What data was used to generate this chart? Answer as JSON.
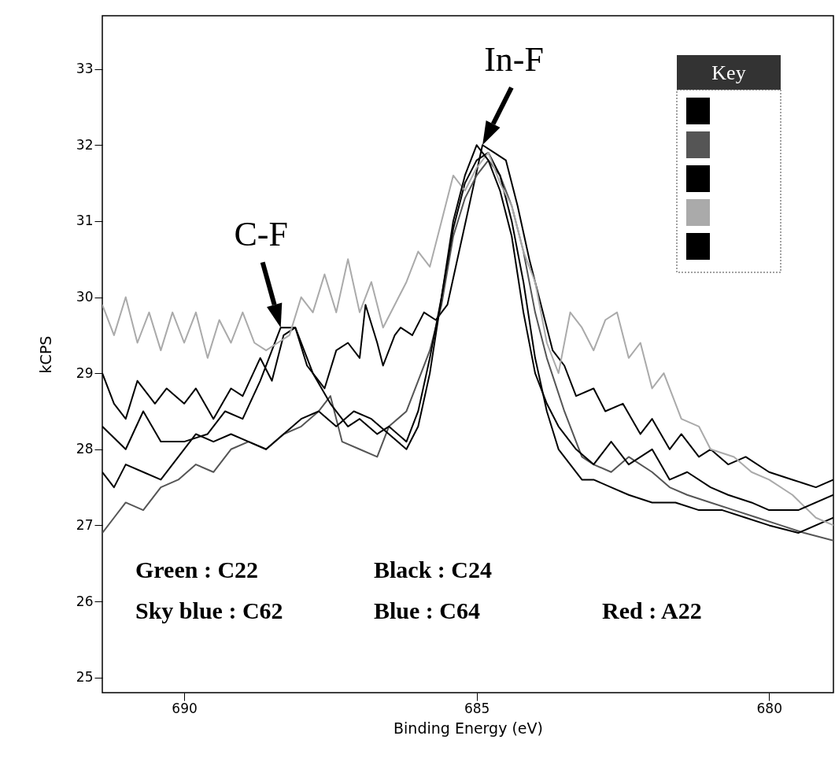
{
  "chart_data": {
    "type": "line",
    "xlabel": "Binding Energy (eV)",
    "ylabel": "kCPS",
    "legend_title": "Key",
    "xlim": [
      691.4,
      678.9
    ],
    "xticks": [
      690,
      685,
      680
    ],
    "ylim": [
      24.8,
      33.7
    ],
    "yticks": [
      25,
      26,
      27,
      28,
      29,
      30,
      31,
      32,
      33
    ],
    "grid": false,
    "annotations": [
      {
        "text": "C-F",
        "x": 688.35,
        "y": 29.6
      },
      {
        "text": "In-F",
        "x": 684.9,
        "y": 32.0
      },
      "Green : C22",
      "Black : C24",
      "Sky blue : C62",
      "Blue : C64",
      "Red : A22"
    ],
    "series": [
      {
        "color": "#000000",
        "x": [
          691.4,
          691.2,
          691.0,
          690.8,
          690.5,
          690.3,
          690.0,
          689.8,
          689.5,
          689.2,
          689.0,
          688.7,
          688.5,
          688.3,
          688.1,
          687.9,
          687.6,
          687.4,
          687.2,
          687.0,
          686.9,
          686.7,
          686.6,
          686.4,
          686.3,
          686.1,
          685.9,
          685.7,
          685.5,
          685.3,
          685.1,
          684.9,
          684.7,
          684.5,
          684.3,
          684.1,
          683.9,
          683.7,
          683.5,
          683.3,
          683.0,
          682.8,
          682.5,
          682.2,
          682.0,
          681.7,
          681.5,
          681.2,
          681.0,
          680.7,
          680.4,
          680.0,
          679.6,
          679.2,
          678.9
        ],
        "values": [
          29.0,
          28.6,
          28.4,
          28.9,
          28.6,
          28.8,
          28.6,
          28.8,
          28.4,
          28.8,
          28.7,
          29.2,
          28.9,
          29.5,
          29.6,
          29.1,
          28.8,
          29.3,
          29.4,
          29.2,
          29.9,
          29.4,
          29.1,
          29.5,
          29.6,
          29.5,
          29.8,
          29.7,
          29.9,
          30.6,
          31.3,
          32.0,
          31.9,
          31.8,
          31.2,
          30.5,
          29.9,
          29.3,
          29.1,
          28.7,
          28.8,
          28.5,
          28.6,
          28.2,
          28.4,
          28.0,
          28.2,
          27.9,
          28.0,
          27.8,
          27.9,
          27.7,
          27.6,
          27.5,
          27.6
        ]
      },
      {
        "color": "#555555",
        "x": [
          691.4,
          691.2,
          691.0,
          690.7,
          690.4,
          690.1,
          689.8,
          689.5,
          689.2,
          688.9,
          688.6,
          688.3,
          688.0,
          687.7,
          687.5,
          687.3,
          687.0,
          686.7,
          686.5,
          686.2,
          686.0,
          685.8,
          685.6,
          685.4,
          685.2,
          685.0,
          684.8,
          684.6,
          684.4,
          684.2,
          684.0,
          683.8,
          683.5,
          683.2,
          683.0,
          682.7,
          682.4,
          682.0,
          681.7,
          681.4,
          681.0,
          680.6,
          680.2,
          679.8,
          679.4,
          678.9
        ],
        "values": [
          26.9,
          27.1,
          27.3,
          27.2,
          27.5,
          27.6,
          27.8,
          27.7,
          28.0,
          28.1,
          28.0,
          28.2,
          28.3,
          28.5,
          28.7,
          28.1,
          28.0,
          27.9,
          28.3,
          28.5,
          28.9,
          29.3,
          29.9,
          30.8,
          31.3,
          31.6,
          31.8,
          31.6,
          31.2,
          30.6,
          29.8,
          29.2,
          28.5,
          27.9,
          27.8,
          27.7,
          27.9,
          27.7,
          27.5,
          27.4,
          27.3,
          27.2,
          27.1,
          27.0,
          26.9,
          26.8
        ]
      },
      {
        "color": "#000000",
        "x": [
          691.4,
          691.0,
          690.7,
          690.4,
          690.0,
          689.6,
          689.3,
          689.0,
          688.7,
          688.5,
          688.35,
          688.1,
          687.8,
          687.5,
          687.2,
          687.0,
          686.7,
          686.5,
          686.2,
          686.0,
          685.8,
          685.6,
          685.4,
          685.2,
          685.0,
          684.8,
          684.6,
          684.4,
          684.2,
          684.0,
          683.8,
          683.6,
          683.4,
          683.2,
          683.0,
          682.7,
          682.4,
          682.0,
          681.6,
          681.2,
          680.8,
          680.4,
          680.0,
          679.5,
          678.9
        ],
        "values": [
          28.3,
          28.0,
          28.5,
          28.1,
          28.1,
          28.2,
          28.5,
          28.4,
          28.9,
          29.3,
          29.6,
          29.6,
          29.0,
          28.6,
          28.3,
          28.4,
          28.2,
          28.3,
          28.1,
          28.5,
          29.2,
          30.0,
          30.9,
          31.5,
          31.8,
          31.9,
          31.6,
          31.0,
          30.2,
          29.2,
          28.5,
          28.0,
          27.8,
          27.6,
          27.6,
          27.5,
          27.4,
          27.3,
          27.3,
          27.2,
          27.2,
          27.1,
          27.0,
          26.9,
          27.1
        ]
      },
      {
        "color": "#aaaaaa",
        "x": [
          691.4,
          691.2,
          691.0,
          690.8,
          690.6,
          690.4,
          690.2,
          690.0,
          689.8,
          689.6,
          689.4,
          689.2,
          689.0,
          688.8,
          688.6,
          688.4,
          688.2,
          688.0,
          687.8,
          687.6,
          687.4,
          687.2,
          687.0,
          686.8,
          686.6,
          686.4,
          686.2,
          686.0,
          685.8,
          685.6,
          685.4,
          685.2,
          685.0,
          684.8,
          684.6,
          684.4,
          684.2,
          684.0,
          683.8,
          683.6,
          683.4,
          683.2,
          683.0,
          682.8,
          682.6,
          682.4,
          682.2,
          682.0,
          681.8,
          681.5,
          681.2,
          681.0,
          680.6,
          680.3,
          680.0,
          679.6,
          679.2,
          678.9
        ],
        "values": [
          29.9,
          29.5,
          30.0,
          29.4,
          29.8,
          29.3,
          29.8,
          29.4,
          29.8,
          29.2,
          29.7,
          29.4,
          29.8,
          29.4,
          29.3,
          29.4,
          29.5,
          30.0,
          29.8,
          30.3,
          29.8,
          30.5,
          29.8,
          30.2,
          29.6,
          29.9,
          30.2,
          30.6,
          30.4,
          31.0,
          31.6,
          31.4,
          31.7,
          31.9,
          31.5,
          31.2,
          30.6,
          30.2,
          29.4,
          29.0,
          29.8,
          29.6,
          29.3,
          29.7,
          29.8,
          29.2,
          29.4,
          28.8,
          29.0,
          28.4,
          28.3,
          28.0,
          27.9,
          27.7,
          27.6,
          27.4,
          27.1,
          27.0
        ]
      },
      {
        "color": "#000000",
        "x": [
          691.4,
          691.2,
          691.0,
          690.7,
          690.4,
          690.1,
          689.8,
          689.5,
          689.2,
          688.9,
          688.6,
          688.3,
          688.0,
          687.7,
          687.4,
          687.1,
          686.8,
          686.5,
          686.2,
          686.0,
          685.8,
          685.6,
          685.4,
          685.2,
          685.0,
          684.8,
          684.6,
          684.4,
          684.2,
          684.0,
          683.8,
          683.6,
          683.3,
          683.0,
          682.7,
          682.4,
          682.0,
          681.7,
          681.4,
          681.0,
          680.7,
          680.3,
          680.0,
          679.5,
          678.9
        ],
        "values": [
          27.7,
          27.5,
          27.8,
          27.7,
          27.6,
          27.9,
          28.2,
          28.1,
          28.2,
          28.1,
          28.0,
          28.2,
          28.4,
          28.5,
          28.3,
          28.5,
          28.4,
          28.2,
          28.0,
          28.3,
          29.0,
          30.0,
          31.0,
          31.6,
          32.0,
          31.8,
          31.4,
          30.8,
          29.8,
          29.0,
          28.6,
          28.3,
          28.0,
          27.8,
          28.1,
          27.8,
          28.0,
          27.6,
          27.7,
          27.5,
          27.4,
          27.3,
          27.2,
          27.2,
          27.4
        ]
      }
    ]
  }
}
